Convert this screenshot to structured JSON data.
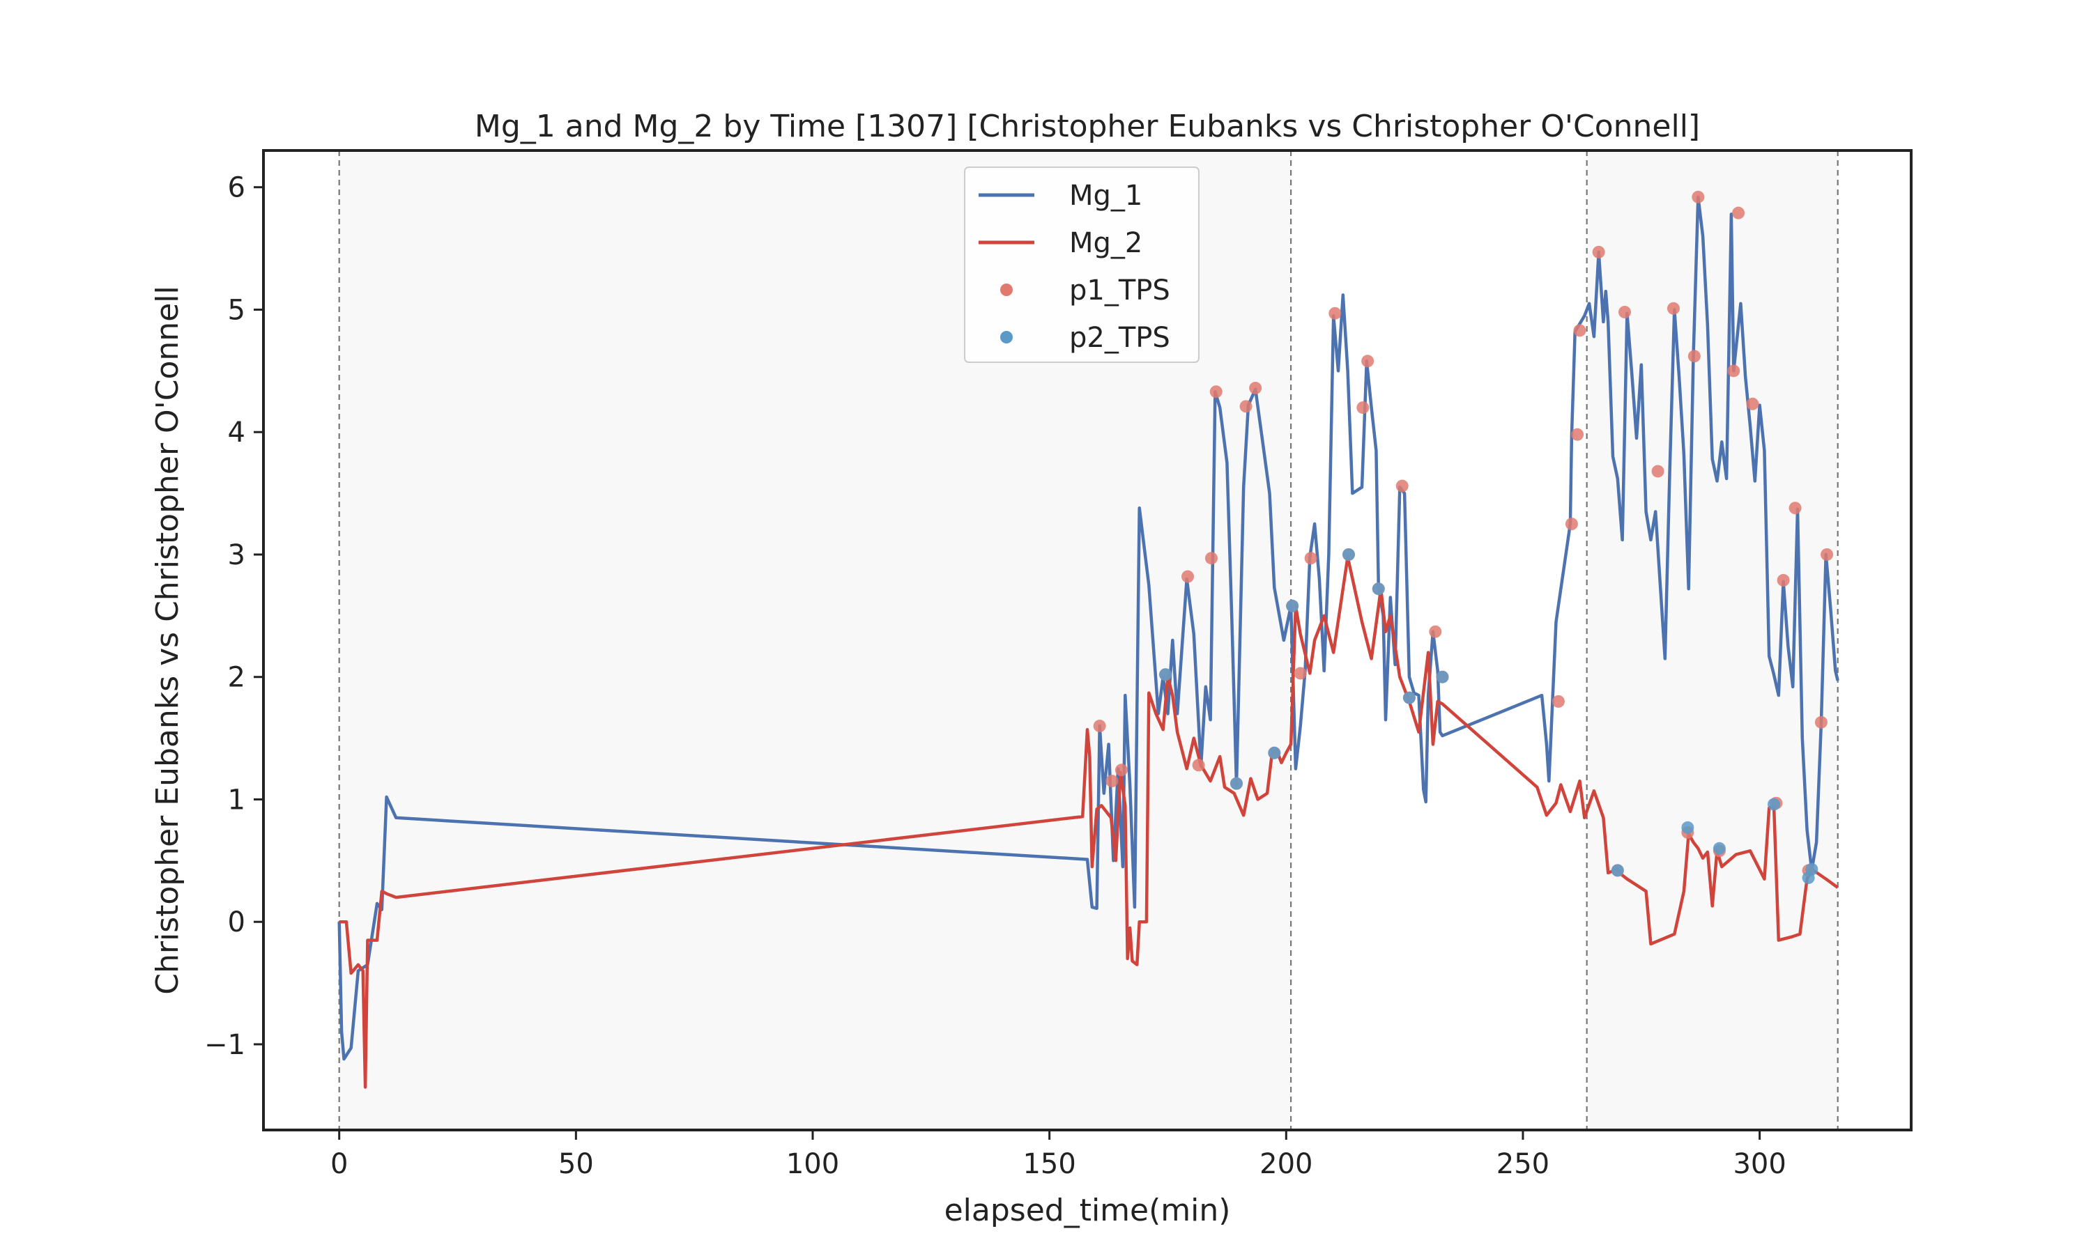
{
  "chart_data": {
    "type": "line",
    "title": "Mg_1 and Mg_2 by Time [1307] [Christopher Eubanks vs Christopher O'Connell]",
    "xlabel": "elapsed_time(min)",
    "ylabel": "Christopher Eubanks vs Christopher O'Connell",
    "xlim": [
      -16,
      332
    ],
    "ylim": [
      -1.7,
      6.3
    ],
    "x_ticks": [
      0,
      50,
      100,
      150,
      200,
      250,
      300
    ],
    "y_ticks": [
      -1,
      0,
      1,
      2,
      3,
      4,
      5,
      6
    ],
    "x_tick_labels": [
      "0",
      "50",
      "100",
      "150",
      "200",
      "250",
      "300"
    ],
    "y_tick_labels": [
      "−1",
      "0",
      "1",
      "2",
      "3",
      "4",
      "5",
      "6"
    ],
    "grid": false,
    "legend_position": "upper center",
    "set_boundaries": [
      0,
      201,
      263.5,
      316.5
    ],
    "shaded_sets": [
      [
        0,
        201
      ],
      [
        263.5,
        316.5
      ]
    ],
    "colors": {
      "Mg_1": "#4c72b0",
      "Mg_2": "#d0443b",
      "p1_TPS": "#e07a70",
      "p2_TPS": "#5a9ac8",
      "shade": "#f8f8f8",
      "boundary": "#777777"
    },
    "series": [
      {
        "name": "Mg_1",
        "kind": "line",
        "points": [
          [
            0,
            0
          ],
          [
            0.5,
            -0.9
          ],
          [
            1,
            -1.12
          ],
          [
            2.5,
            -1.03
          ],
          [
            4,
            -0.4
          ],
          [
            6,
            -0.35
          ],
          [
            8,
            0.15
          ],
          [
            9,
            0.1
          ],
          [
            10,
            1.02
          ],
          [
            12,
            0.85
          ],
          [
            158,
            0.51
          ],
          [
            159,
            0.12
          ],
          [
            160,
            0.11
          ],
          [
            160.6,
            1.6
          ],
          [
            161.5,
            1.05
          ],
          [
            162.5,
            1.45
          ],
          [
            163.5,
            0.5
          ],
          [
            164.5,
            1.25
          ],
          [
            165.5,
            0.45
          ],
          [
            166,
            1.85
          ],
          [
            167,
            1.12
          ],
          [
            168,
            0.12
          ],
          [
            169,
            3.38
          ],
          [
            171,
            2.75
          ],
          [
            173,
            1.7
          ],
          [
            174,
            2.0
          ],
          [
            175,
            1.7
          ],
          [
            176,
            2.3
          ],
          [
            177,
            1.7
          ],
          [
            179,
            2.8
          ],
          [
            180.5,
            2.35
          ],
          [
            182,
            1.27
          ],
          [
            183,
            1.92
          ],
          [
            184,
            1.65
          ],
          [
            185,
            4.33
          ],
          [
            186,
            4.2
          ],
          [
            187.5,
            3.75
          ],
          [
            188.5,
            2.5
          ],
          [
            189.5,
            1.12
          ],
          [
            191,
            3.55
          ],
          [
            192,
            4.22
          ],
          [
            193.5,
            4.35
          ],
          [
            195,
            3.93
          ],
          [
            196.5,
            3.5
          ],
          [
            197.5,
            2.73
          ],
          [
            199.5,
            2.3
          ],
          [
            201,
            2.58
          ],
          [
            202,
            1.25
          ],
          [
            203,
            1.6
          ],
          [
            204,
            2.05
          ],
          [
            205,
            2.98
          ],
          [
            206,
            3.25
          ],
          [
            207,
            2.8
          ],
          [
            208,
            2.05
          ],
          [
            209,
            3.0
          ],
          [
            210,
            4.95
          ],
          [
            211,
            4.5
          ],
          [
            212,
            5.12
          ],
          [
            213,
            4.5
          ],
          [
            214,
            3.5
          ],
          [
            216,
            3.55
          ],
          [
            217,
            4.58
          ],
          [
            218,
            4.2
          ],
          [
            219,
            3.85
          ],
          [
            219.5,
            2.73
          ],
          [
            220.5,
            2.5
          ],
          [
            221,
            1.65
          ],
          [
            222,
            2.65
          ],
          [
            223,
            2.1
          ],
          [
            224,
            3.55
          ],
          [
            225,
            3.5
          ],
          [
            226,
            2.0
          ],
          [
            227,
            1.87
          ],
          [
            228,
            1.85
          ],
          [
            229,
            1.08
          ],
          [
            229.5,
            0.98
          ],
          [
            230,
            1.85
          ],
          [
            231,
            2.37
          ],
          [
            232,
            2.05
          ],
          [
            232.5,
            1.55
          ],
          [
            233,
            1.52
          ],
          [
            254,
            1.85
          ],
          [
            255,
            1.45
          ],
          [
            255.5,
            1.15
          ],
          [
            257,
            2.45
          ],
          [
            260,
            3.25
          ],
          [
            260.3,
            3.97
          ],
          [
            261,
            4.82
          ],
          [
            263,
            4.95
          ],
          [
            264,
            5.05
          ],
          [
            265,
            4.78
          ],
          [
            266,
            5.47
          ],
          [
            267,
            4.9
          ],
          [
            267.5,
            5.15
          ],
          [
            268,
            4.9
          ],
          [
            269,
            3.8
          ],
          [
            270,
            3.62
          ],
          [
            271,
            3.12
          ],
          [
            272,
            4.97
          ],
          [
            273,
            4.48
          ],
          [
            274,
            3.95
          ],
          [
            275,
            4.55
          ],
          [
            276,
            3.35
          ],
          [
            277,
            3.12
          ],
          [
            278,
            3.35
          ],
          [
            280,
            2.15
          ],
          [
            281,
            3.68
          ],
          [
            282,
            5.0
          ],
          [
            283,
            4.45
          ],
          [
            284,
            3.82
          ],
          [
            285,
            2.72
          ],
          [
            286,
            4.62
          ],
          [
            287,
            5.92
          ],
          [
            288,
            5.6
          ],
          [
            289,
            4.87
          ],
          [
            290,
            3.78
          ],
          [
            291,
            3.6
          ],
          [
            292,
            3.92
          ],
          [
            293,
            3.62
          ],
          [
            294,
            5.78
          ],
          [
            294.5,
            4.5
          ],
          [
            296,
            5.05
          ],
          [
            297,
            4.45
          ],
          [
            298,
            4.05
          ],
          [
            299,
            3.6
          ],
          [
            300,
            4.22
          ],
          [
            301,
            3.85
          ],
          [
            302,
            2.17
          ],
          [
            303,
            2.02
          ],
          [
            304,
            1.85
          ],
          [
            305,
            2.78
          ],
          [
            306,
            2.25
          ],
          [
            307,
            1.92
          ],
          [
            308,
            3.37
          ],
          [
            309,
            1.5
          ],
          [
            310,
            0.75
          ],
          [
            311,
            0.42
          ],
          [
            312,
            0.65
          ],
          [
            313,
            1.62
          ],
          [
            314,
            3.0
          ],
          [
            315,
            2.55
          ],
          [
            316,
            2.05
          ],
          [
            316.5,
            1.97
          ]
        ]
      },
      {
        "name": "Mg_2",
        "kind": "line",
        "points": [
          [
            0,
            0
          ],
          [
            1.5,
            0
          ],
          [
            2.5,
            -0.42
          ],
          [
            4,
            -0.35
          ],
          [
            5,
            -0.4
          ],
          [
            5.5,
            -1.35
          ],
          [
            6,
            -0.15
          ],
          [
            8,
            -0.15
          ],
          [
            9,
            0.25
          ],
          [
            10,
            0.23
          ],
          [
            12,
            0.2
          ],
          [
            157,
            0.86
          ],
          [
            158,
            1.57
          ],
          [
            158.5,
            1.35
          ],
          [
            159,
            0.45
          ],
          [
            160,
            0.92
          ],
          [
            161,
            0.95
          ],
          [
            163,
            0.85
          ],
          [
            164,
            0.5
          ],
          [
            165,
            1.22
          ],
          [
            166,
            0.95
          ],
          [
            166.5,
            -0.3
          ],
          [
            167,
            -0.05
          ],
          [
            167.5,
            -0.32
          ],
          [
            168.5,
            -0.35
          ],
          [
            169,
            0
          ],
          [
            170.5,
            0
          ],
          [
            171,
            1.87
          ],
          [
            172.5,
            1.7
          ],
          [
            174,
            1.57
          ],
          [
            175,
            2.0
          ],
          [
            176,
            1.85
          ],
          [
            177,
            1.55
          ],
          [
            179,
            1.25
          ],
          [
            180.5,
            1.5
          ],
          [
            182,
            1.28
          ],
          [
            184,
            1.15
          ],
          [
            186,
            1.35
          ],
          [
            187,
            1.1
          ],
          [
            189,
            1.05
          ],
          [
            191,
            0.87
          ],
          [
            192.5,
            1.17
          ],
          [
            194,
            1.0
          ],
          [
            196,
            1.05
          ],
          [
            197,
            1.37
          ],
          [
            198,
            1.4
          ],
          [
            199,
            1.3
          ],
          [
            200,
            1.38
          ],
          [
            201,
            1.45
          ],
          [
            202,
            2.58
          ],
          [
            203,
            2.35
          ],
          [
            205,
            2.03
          ],
          [
            206,
            2.3
          ],
          [
            208,
            2.5
          ],
          [
            210,
            2.2
          ],
          [
            213,
            2.98
          ],
          [
            216,
            2.45
          ],
          [
            218,
            2.15
          ],
          [
            220,
            2.72
          ],
          [
            221,
            2.37
          ],
          [
            222,
            2.5
          ],
          [
            224,
            2.0
          ],
          [
            226,
            1.8
          ],
          [
            228,
            1.55
          ],
          [
            230,
            2.2
          ],
          [
            231,
            1.45
          ],
          [
            232,
            1.8
          ],
          [
            233,
            1.78
          ],
          [
            253,
            1.1
          ],
          [
            255,
            0.87
          ],
          [
            257,
            0.97
          ],
          [
            258,
            1.12
          ],
          [
            260,
            0.9
          ],
          [
            262,
            1.15
          ],
          [
            263,
            0.85
          ],
          [
            265,
            1.07
          ],
          [
            267,
            0.85
          ],
          [
            268,
            0.4
          ],
          [
            270,
            0.43
          ],
          [
            271,
            0.38
          ],
          [
            272,
            0.35
          ],
          [
            276,
            0.25
          ],
          [
            277,
            -0.18
          ],
          [
            282,
            -0.1
          ],
          [
            284,
            0.25
          ],
          [
            285,
            0.72
          ],
          [
            286,
            0.65
          ],
          [
            287,
            0.6
          ],
          [
            288,
            0.52
          ],
          [
            289,
            0.57
          ],
          [
            290,
            0.13
          ],
          [
            291,
            0.58
          ],
          [
            292,
            0.45
          ],
          [
            295,
            0.55
          ],
          [
            298,
            0.58
          ],
          [
            301,
            0.35
          ],
          [
            302,
            0.93
          ],
          [
            303,
            0.95
          ],
          [
            304,
            -0.15
          ],
          [
            307,
            -0.12
          ],
          [
            308.5,
            -0.1
          ],
          [
            310,
            0.35
          ],
          [
            311,
            0.43
          ],
          [
            314,
            0.35
          ],
          [
            316.5,
            0.28
          ]
        ]
      },
      {
        "name": "p1_TPS",
        "kind": "scatter",
        "points": [
          [
            160.6,
            1.6
          ],
          [
            163.2,
            1.15
          ],
          [
            165.2,
            1.24
          ],
          [
            174.5,
            2.02
          ],
          [
            179.2,
            2.82
          ],
          [
            181.5,
            1.28
          ],
          [
            184.2,
            2.97
          ],
          [
            185.2,
            4.33
          ],
          [
            189.5,
            1.13
          ],
          [
            191.5,
            4.21
          ],
          [
            193.5,
            4.36
          ],
          [
            197.5,
            1.38
          ],
          [
            201.3,
            2.58
          ],
          [
            203,
            2.03
          ],
          [
            205.2,
            2.97
          ],
          [
            210.3,
            4.97
          ],
          [
            213.2,
            3.0
          ],
          [
            216.2,
            4.2
          ],
          [
            217.2,
            4.58
          ],
          [
            219.5,
            2.72
          ],
          [
            224.5,
            3.56
          ],
          [
            226,
            1.83
          ],
          [
            231.5,
            2.37
          ],
          [
            233,
            2.0
          ],
          [
            257.5,
            1.8
          ],
          [
            260.3,
            3.25
          ],
          [
            261.5,
            3.98
          ],
          [
            262,
            4.83
          ],
          [
            266,
            5.47
          ],
          [
            270,
            0.42
          ],
          [
            271.5,
            4.98
          ],
          [
            278.5,
            3.68
          ],
          [
            281.8,
            5.01
          ],
          [
            284.8,
            0.73
          ],
          [
            286.2,
            4.62
          ],
          [
            287,
            5.92
          ],
          [
            291.5,
            0.58
          ],
          [
            294.5,
            4.5
          ],
          [
            295.5,
            5.79
          ],
          [
            298.5,
            4.23
          ],
          [
            303.5,
            0.97
          ],
          [
            305,
            2.79
          ],
          [
            307.5,
            3.38
          ],
          [
            310.3,
            0.42
          ],
          [
            313,
            1.63
          ],
          [
            314.2,
            3.0
          ]
        ]
      },
      {
        "name": "p2_TPS",
        "kind": "scatter",
        "points": [
          [
            174.5,
            2.02
          ],
          [
            189.5,
            1.13
          ],
          [
            197.5,
            1.38
          ],
          [
            201.3,
            2.58
          ],
          [
            213.2,
            3.0
          ],
          [
            219.5,
            2.72
          ],
          [
            226,
            1.83
          ],
          [
            233,
            2.0
          ],
          [
            270,
            0.42
          ],
          [
            284.8,
            0.77
          ],
          [
            291.5,
            0.6
          ],
          [
            303,
            0.96
          ],
          [
            310.3,
            0.36
          ],
          [
            311,
            0.43
          ]
        ]
      }
    ]
  }
}
